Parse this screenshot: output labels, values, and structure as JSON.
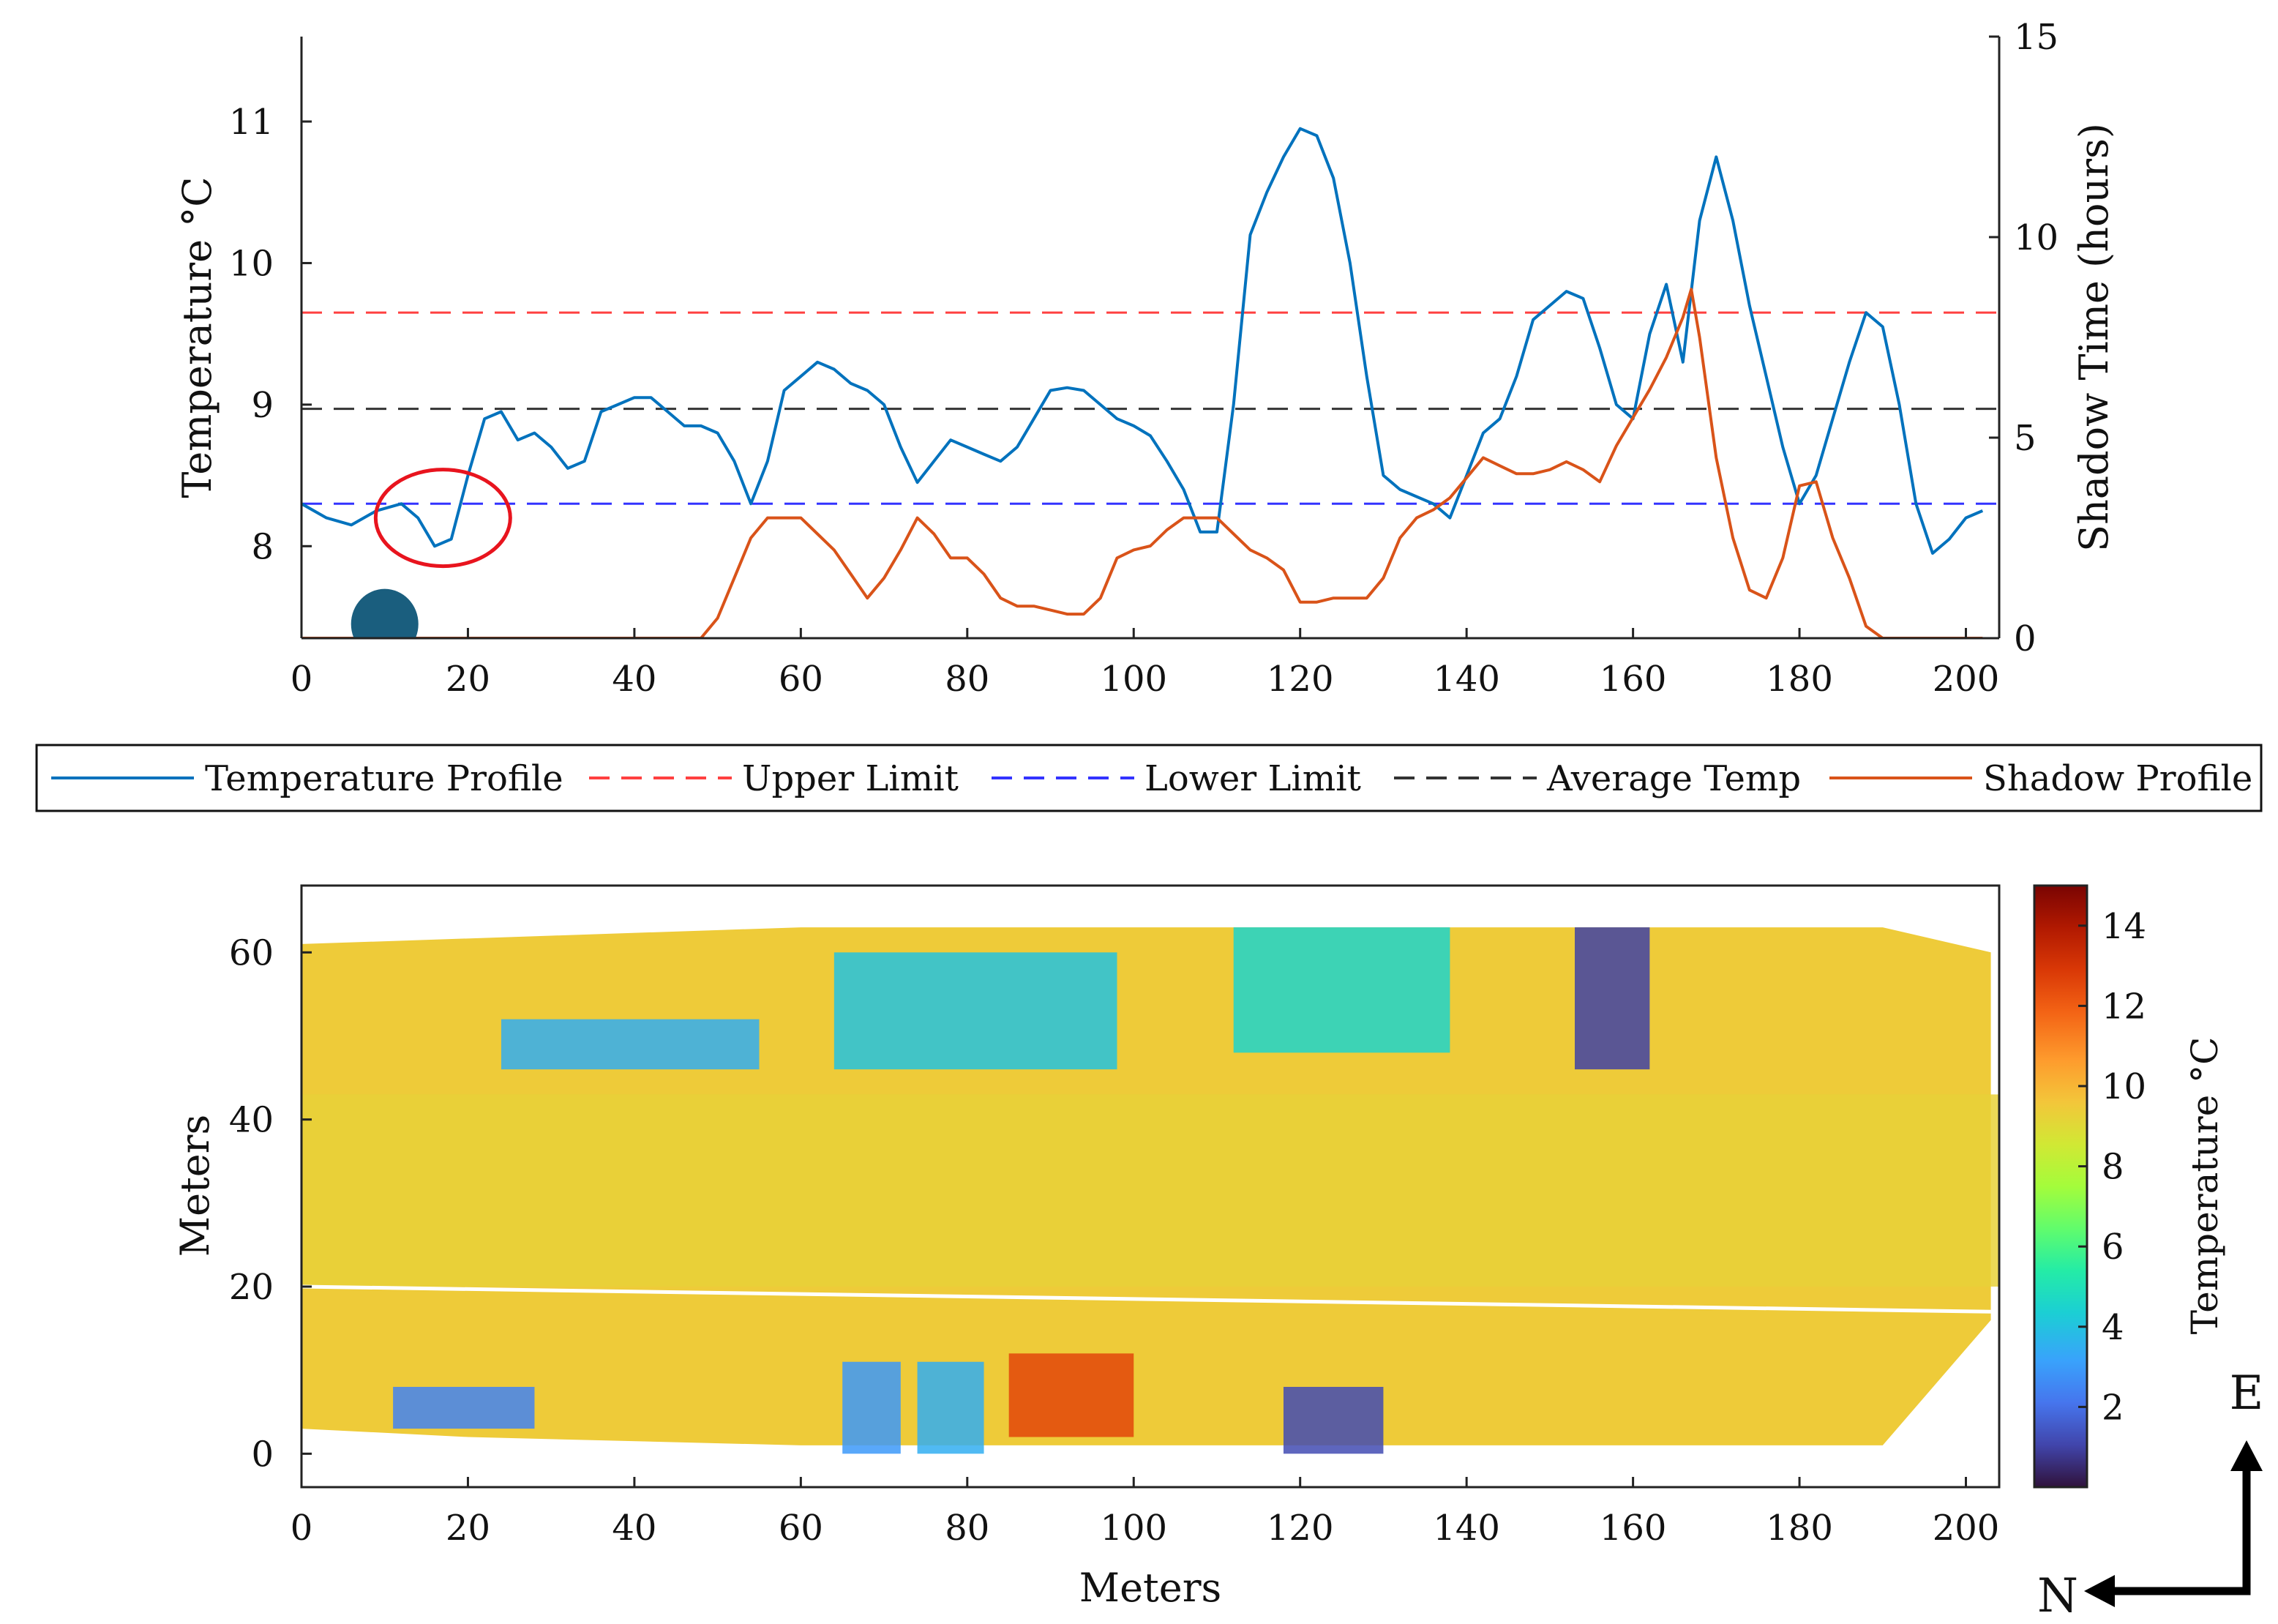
{
  "chart_data": [
    {
      "type": "line",
      "panel": "profile",
      "xlim": [
        0,
        204
      ],
      "x_ticks": [
        0,
        20,
        40,
        60,
        80,
        100,
        120,
        140,
        160,
        180,
        200
      ],
      "ylabel_left": "Temperature °C",
      "ylim_left": [
        7.35,
        11.6
      ],
      "y_ticks_left": [
        8,
        9,
        10,
        11
      ],
      "ylabel_right": "Shadow Time (hours)",
      "ylim_right": [
        0,
        15
      ],
      "y_ticks_right": [
        0,
        5,
        10,
        15
      ],
      "grid": false,
      "legend": {
        "position": "below",
        "entries": [
          "Temperature Profile",
          "Upper Limit",
          "Lower Limit",
          "Average Temp",
          "Shadow Profile"
        ]
      },
      "series": [
        {
          "name": "Temperature Profile",
          "axis": "left",
          "style": "solid",
          "color": "#0072BD",
          "x": [
            0,
            3,
            6,
            9,
            12,
            14,
            16,
            18,
            20,
            22,
            24,
            26,
            28,
            30,
            32,
            34,
            36,
            38,
            40,
            42,
            44,
            46,
            48,
            50,
            52,
            54,
            56,
            58,
            60,
            62,
            64,
            66,
            68,
            70,
            72,
            74,
            76,
            78,
            80,
            82,
            84,
            86,
            88,
            90,
            92,
            94,
            96,
            98,
            100,
            102,
            104,
            106,
            108,
            110,
            112,
            114,
            116,
            118,
            120,
            122,
            124,
            126,
            128,
            130,
            132,
            134,
            136,
            138,
            140,
            142,
            144,
            146,
            148,
            150,
            152,
            154,
            156,
            158,
            160,
            162,
            164,
            166,
            168,
            170,
            172,
            174,
            176,
            178,
            180,
            182,
            184,
            186,
            188,
            190,
            192,
            194,
            196,
            198,
            200,
            202
          ],
          "values": [
            8.3,
            8.2,
            8.15,
            8.25,
            8.3,
            8.2,
            8.0,
            8.05,
            8.5,
            8.9,
            8.95,
            8.75,
            8.8,
            8.7,
            8.55,
            8.6,
            8.95,
            9.0,
            9.05,
            9.05,
            8.95,
            8.85,
            8.85,
            8.8,
            8.6,
            8.3,
            8.6,
            9.1,
            9.2,
            9.3,
            9.25,
            9.15,
            9.1,
            9.0,
            8.7,
            8.45,
            8.6,
            8.75,
            8.7,
            8.65,
            8.6,
            8.7,
            8.9,
            9.1,
            9.12,
            9.1,
            9.0,
            8.9,
            8.85,
            8.78,
            8.6,
            8.4,
            8.1,
            8.1,
            9.0,
            10.2,
            10.5,
            10.75,
            10.95,
            10.9,
            10.6,
            10.0,
            9.2,
            8.5,
            8.4,
            8.35,
            8.3,
            8.2,
            8.5,
            8.8,
            8.9,
            9.2,
            9.6,
            9.7,
            9.8,
            9.75,
            9.4,
            9.0,
            8.9,
            9.5,
            9.85,
            9.3,
            10.3,
            10.75,
            10.3,
            9.7,
            9.2,
            8.7,
            8.3,
            8.5,
            8.9,
            9.3,
            9.65,
            9.55,
            9.0,
            8.3,
            7.95,
            8.05,
            8.2,
            8.25
          ]
        },
        {
          "name": "Shadow Profile",
          "axis": "right",
          "style": "solid",
          "color": "#D95319",
          "x": [
            0,
            44,
            48,
            50,
            52,
            54,
            56,
            60,
            62,
            64,
            66,
            68,
            70,
            72,
            74,
            76,
            78,
            80,
            82,
            84,
            86,
            88,
            90,
            92,
            94,
            96,
            98,
            100,
            102,
            104,
            106,
            108,
            110,
            112,
            114,
            116,
            118,
            120,
            122,
            124,
            126,
            128,
            130,
            132,
            134,
            136,
            138,
            140,
            142,
            144,
            146,
            148,
            150,
            152,
            154,
            156,
            158,
            160,
            162,
            164,
            166,
            167,
            168,
            170,
            172,
            174,
            176,
            178,
            180,
            182,
            184,
            186,
            188,
            190,
            192,
            194,
            196,
            198,
            200,
            202
          ],
          "values": [
            0,
            0,
            0,
            0.5,
            1.5,
            2.5,
            3,
            3,
            2.6,
            2.2,
            1.6,
            1.0,
            1.5,
            2.2,
            3.0,
            2.6,
            2.0,
            2.0,
            1.6,
            1.0,
            0.8,
            0.8,
            0.7,
            0.6,
            0.6,
            1.0,
            2.0,
            2.2,
            2.3,
            2.7,
            3.0,
            3.0,
            3.0,
            2.6,
            2.2,
            2.0,
            1.7,
            0.9,
            0.9,
            1.0,
            1.0,
            1.0,
            1.5,
            2.5,
            3.0,
            3.2,
            3.5,
            4.0,
            4.5,
            4.3,
            4.1,
            4.1,
            4.2,
            4.4,
            4.2,
            3.9,
            4.8,
            5.5,
            6.2,
            7.0,
            8.0,
            8.7,
            7.5,
            4.5,
            2.5,
            1.2,
            1.0,
            2.0,
            3.8,
            3.9,
            2.5,
            1.5,
            0.3,
            0,
            0,
            0,
            0,
            0,
            0,
            0
          ]
        },
        {
          "name": "Upper Limit",
          "axis": "left",
          "style": "dashed",
          "color": "#FF4040",
          "value": 9.65
        },
        {
          "name": "Lower Limit",
          "axis": "left",
          "style": "dashed",
          "color": "#3333FF",
          "value": 8.3
        },
        {
          "name": "Average Temp",
          "axis": "left",
          "style": "dashed",
          "color": "#333333",
          "value": 8.97
        }
      ],
      "annotations": [
        {
          "shape": "ellipse",
          "color": "#E8141E",
          "x_center": 17,
          "y_center": 8.2,
          "note": "red circle outlining local temperature dip"
        },
        {
          "shape": "filled-ellipse",
          "color": "#1A5E7E",
          "x_center": 10,
          "y_center": 7.45,
          "note": "position marker"
        }
      ]
    },
    {
      "type": "heatmap",
      "panel": "thermal-map",
      "xlabel": "Meters",
      "ylabel": "Meters",
      "xlim": [
        0,
        204
      ],
      "ylim": [
        -4,
        68
      ],
      "x_ticks": [
        0,
        20,
        40,
        60,
        80,
        100,
        120,
        140,
        160,
        180,
        200
      ],
      "y_ticks": [
        0,
        20,
        40,
        60
      ],
      "colorbar": {
        "label": "Temperature °C",
        "range": [
          0,
          15
        ],
        "ticks": [
          2,
          4,
          6,
          8,
          10,
          12,
          14
        ],
        "colormap": "turbo"
      },
      "background_temperature": 9.5,
      "regions": [
        {
          "name": "road surface",
          "x": [
            0,
            204
          ],
          "y": [
            20,
            43
          ],
          "temp": 9.3
        },
        {
          "name": "north building 1",
          "x": [
            24,
            55
          ],
          "y": [
            46,
            52
          ],
          "temp": 3.5
        },
        {
          "name": "north building 2",
          "x": [
            64,
            98
          ],
          "y": [
            46,
            60
          ],
          "temp": 4.0
        },
        {
          "name": "north building 3",
          "x": [
            112,
            138
          ],
          "y": [
            48,
            63
          ],
          "temp": 4.5
        },
        {
          "name": "north dark block",
          "x": [
            153,
            162
          ],
          "y": [
            46,
            63
          ],
          "temp": 1.0
        },
        {
          "name": "south shaded lot",
          "x": [
            11,
            28
          ],
          "y": [
            3,
            8
          ],
          "temp": 2.5
        },
        {
          "name": "south shaded strip 1",
          "x": [
            65,
            72
          ],
          "y": [
            0,
            11
          ],
          "temp": 3.0
        },
        {
          "name": "south shaded strip 2",
          "x": [
            74,
            82
          ],
          "y": [
            0,
            11
          ],
          "temp": 3.5
        },
        {
          "name": "south building warm",
          "x": [
            85,
            100
          ],
          "y": [
            2,
            12
          ],
          "temp": 12.5
        },
        {
          "name": "south dark block",
          "x": [
            118,
            130
          ],
          "y": [
            0,
            8
          ],
          "temp": 1.2
        }
      ]
    }
  ],
  "legend_labels": {
    "temperature_profile": "Temperature Profile",
    "upper_limit": "Upper Limit",
    "lower_limit": "Lower Limit",
    "average_temp": "Average Temp",
    "shadow_profile": "Shadow Profile"
  },
  "compass": {
    "east": "E",
    "north": "N"
  },
  "colors": {
    "temperature": "#0072BD",
    "shadow": "#D95319",
    "upper": "#FF4040",
    "lower": "#3333FF",
    "average": "#333333",
    "annotation_ring": "#E8141E",
    "marker": "#1A5E7E"
  }
}
